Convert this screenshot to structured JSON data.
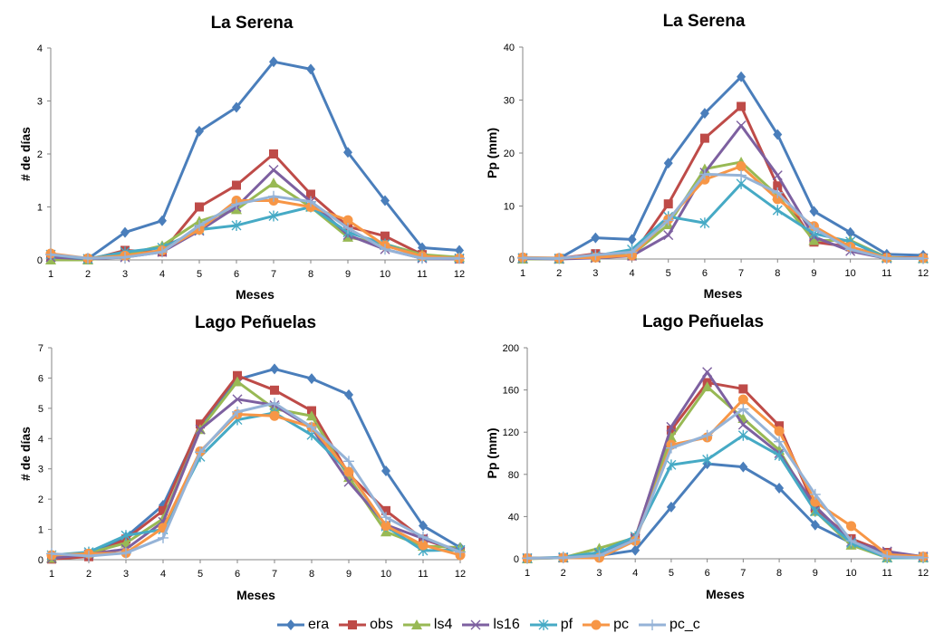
{
  "series_meta": [
    {
      "name": "era",
      "color": "#4a7ebb",
      "marker": "diamond"
    },
    {
      "name": "obs",
      "color": "#be4b48",
      "marker": "square"
    },
    {
      "name": "ls4",
      "color": "#98b954",
      "marker": "triangle"
    },
    {
      "name": "ls16",
      "color": "#7d60a0",
      "marker": "x"
    },
    {
      "name": "pf",
      "color": "#46aac5",
      "marker": "star"
    },
    {
      "name": "pc",
      "color": "#f79646",
      "marker": "circle"
    },
    {
      "name": "pc_c",
      "color": "#95b3d7",
      "marker": "plus"
    }
  ],
  "legend": {
    "placement": "bottom-center",
    "items": [
      "era",
      "obs",
      "ls4",
      "ls16",
      "pf",
      "pc",
      "pc_c"
    ]
  },
  "chart_data": [
    {
      "type": "line",
      "title": "La Serena",
      "xlabel": "Meses",
      "ylabel": "# de días",
      "categories": [
        "1",
        "2",
        "3",
        "4",
        "5",
        "6",
        "7",
        "8",
        "9",
        "10",
        "11",
        "12"
      ],
      "ylim": [
        0,
        4
      ],
      "yticks": [
        "0",
        "1",
        "2",
        "3",
        "4"
      ],
      "grid": false,
      "series": [
        {
          "name": "era",
          "values": [
            0.05,
            0.02,
            0.52,
            0.74,
            2.43,
            2.88,
            3.74,
            3.6,
            2.03,
            1.12,
            0.23,
            0.18
          ]
        },
        {
          "name": "obs",
          "values": [
            0.05,
            0.0,
            0.18,
            0.15,
            1.0,
            1.41,
            2.0,
            1.24,
            0.63,
            0.45,
            0.1,
            0.02
          ]
        },
        {
          "name": "ls4",
          "values": [
            0.0,
            0.0,
            0.1,
            0.27,
            0.73,
            0.95,
            1.45,
            1.0,
            0.43,
            0.3,
            0.1,
            0.05
          ]
        },
        {
          "name": "ls16",
          "values": [
            0.05,
            0.02,
            0.05,
            0.15,
            0.55,
            1.0,
            1.7,
            1.1,
            0.47,
            0.2,
            0.03,
            0.02
          ]
        },
        {
          "name": "pf",
          "values": [
            0.1,
            0.02,
            0.15,
            0.23,
            0.57,
            0.65,
            0.83,
            1.0,
            0.52,
            0.3,
            0.05,
            0.03
          ]
        },
        {
          "name": "pc",
          "values": [
            0.12,
            0.03,
            0.08,
            0.18,
            0.57,
            1.12,
            1.12,
            1.0,
            0.75,
            0.27,
            0.07,
            0.03
          ]
        },
        {
          "name": "pc_c",
          "values": [
            0.1,
            0.03,
            0.05,
            0.15,
            0.65,
            1.05,
            1.2,
            1.1,
            0.6,
            0.2,
            0.03,
            0.03
          ]
        }
      ]
    },
    {
      "type": "line",
      "title": "La Serena",
      "xlabel": "Meses",
      "ylabel": "Pp (mm)",
      "categories": [
        "1",
        "2",
        "3",
        "4",
        "5",
        "6",
        "7",
        "8",
        "9",
        "10",
        "11",
        "12"
      ],
      "ylim": [
        0,
        40
      ],
      "yticks": [
        "0",
        "10",
        "20",
        "30",
        "40"
      ],
      "grid": false,
      "series": [
        {
          "name": "era",
          "values": [
            0.2,
            0.1,
            4.0,
            3.7,
            18.1,
            27.5,
            34.4,
            23.5,
            9.0,
            5.0,
            0.9,
            0.7
          ]
        },
        {
          "name": "obs",
          "values": [
            0.2,
            0.1,
            1.0,
            0.6,
            10.4,
            22.8,
            28.8,
            13.8,
            3.2,
            2.3,
            0.3,
            0.2
          ]
        },
        {
          "name": "ls4",
          "values": [
            0.0,
            0.0,
            0.3,
            0.8,
            6.5,
            17.0,
            18.3,
            12.0,
            3.5,
            3.5,
            0.3,
            0.1
          ]
        },
        {
          "name": "ls16",
          "values": [
            0.1,
            0.0,
            0.2,
            0.6,
            4.5,
            16.3,
            25.2,
            15.8,
            4.2,
            1.5,
            0.1,
            0.1
          ]
        },
        {
          "name": "pf",
          "values": [
            0.2,
            0.1,
            0.6,
            1.8,
            8.0,
            6.8,
            14.2,
            9.2,
            4.8,
            3.3,
            0.2,
            0.1
          ]
        },
        {
          "name": "pc",
          "values": [
            0.3,
            0.2,
            0.3,
            0.7,
            7.5,
            15.0,
            17.5,
            11.3,
            6.2,
            2.3,
            0.2,
            0.2
          ]
        },
        {
          "name": "pc_c",
          "values": [
            0.2,
            0.1,
            0.8,
            1.3,
            7.3,
            16.0,
            15.8,
            12.5,
            5.8,
            1.8,
            0.1,
            0.1
          ]
        }
      ]
    },
    {
      "type": "line",
      "title": "Lago Peñuelas",
      "xlabel": "Meses",
      "ylabel": "# de días",
      "categories": [
        "1",
        "2",
        "3",
        "4",
        "5",
        "6",
        "7",
        "8",
        "9",
        "10",
        "11",
        "12"
      ],
      "ylim": [
        0,
        7
      ],
      "yticks": [
        "0",
        "1",
        "2",
        "3",
        "4",
        "5",
        "6",
        "7"
      ],
      "grid": false,
      "series": [
        {
          "name": "era",
          "values": [
            0.05,
            0.2,
            0.75,
            1.8,
            4.4,
            5.95,
            6.3,
            5.98,
            5.45,
            2.93,
            1.12,
            0.4
          ]
        },
        {
          "name": "obs",
          "values": [
            0.02,
            0.1,
            0.68,
            1.62,
            4.48,
            6.08,
            5.6,
            4.92,
            2.82,
            1.62,
            0.68,
            0.25
          ]
        },
        {
          "name": "ls4",
          "values": [
            0.05,
            0.22,
            0.55,
            1.35,
            4.3,
            5.88,
            4.98,
            4.75,
            2.72,
            0.92,
            0.45,
            0.4
          ]
        },
        {
          "name": "ls16",
          "values": [
            0.05,
            0.18,
            0.35,
            1.25,
            4.3,
            5.3,
            5.1,
            4.35,
            2.57,
            1.15,
            0.7,
            0.28
          ]
        },
        {
          "name": "pf",
          "values": [
            0.15,
            0.25,
            0.8,
            1.0,
            3.4,
            4.62,
            4.85,
            4.12,
            2.9,
            1.1,
            0.3,
            0.32
          ]
        },
        {
          "name": "pc",
          "values": [
            0.15,
            0.2,
            0.22,
            1.05,
            3.58,
            4.8,
            4.75,
            4.38,
            2.9,
            1.12,
            0.48,
            0.15
          ]
        },
        {
          "name": "pc_c",
          "values": [
            0.2,
            0.12,
            0.22,
            0.72,
            3.55,
            4.88,
            5.17,
            4.38,
            3.25,
            1.4,
            0.75,
            0.25
          ]
        }
      ]
    },
    {
      "type": "line",
      "title": "Lago Peñuelas",
      "xlabel": "Meses",
      "ylabel": "Pp (mm)",
      "categories": [
        "1",
        "2",
        "3",
        "4",
        "5",
        "6",
        "7",
        "8",
        "9",
        "10",
        "11",
        "12"
      ],
      "ylim": [
        0,
        200
      ],
      "yticks": [
        "0",
        "40",
        "80",
        "120",
        "160",
        "200"
      ],
      "grid": false,
      "series": [
        {
          "name": "era",
          "values": [
            0.5,
            1.0,
            3.0,
            8.0,
            49,
            90,
            87,
            67,
            32,
            15,
            5,
            2
          ]
        },
        {
          "name": "obs",
          "values": [
            0.5,
            1.0,
            5.0,
            20,
            122,
            167,
            161,
            126,
            48,
            19,
            6,
            2
          ]
        },
        {
          "name": "ls4",
          "values": [
            0.0,
            1.0,
            10,
            20,
            115,
            163,
            133,
            103,
            45,
            13,
            1,
            1
          ]
        },
        {
          "name": "ls16",
          "values": [
            0.5,
            1.0,
            5.0,
            19,
            125,
            177,
            127,
            100,
            50,
            16,
            7,
            2
          ]
        },
        {
          "name": "pf",
          "values": [
            0.5,
            1.5,
            6.0,
            21,
            89,
            94,
            117,
            98,
            45,
            15,
            1,
            1
          ]
        },
        {
          "name": "pc",
          "values": [
            0.5,
            1.0,
            1.0,
            17,
            108,
            115,
            151,
            121,
            54,
            31,
            4,
            2
          ]
        },
        {
          "name": "pc_c",
          "values": [
            0.5,
            1.0,
            3.0,
            18,
            105,
            117,
            142,
            111,
            61,
            17,
            2,
            1
          ]
        }
      ]
    }
  ]
}
